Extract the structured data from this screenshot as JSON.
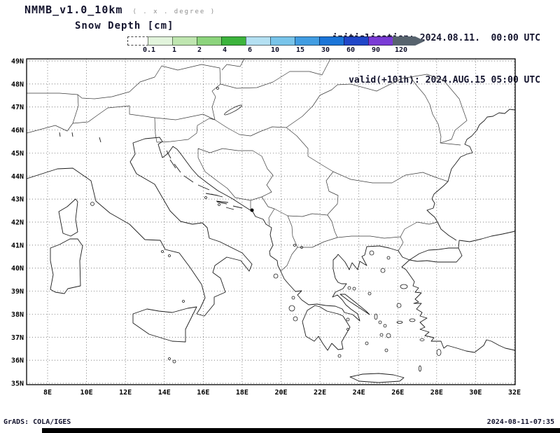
{
  "header": {
    "model": "NMMB_v1.0_10km",
    "resolution_note": "( . x . degree )",
    "field": "Snow Depth [cm]",
    "initialisation": "initialisation: 2024.08.11.  00:00 UTC",
    "valid": "valid(+101h): 2024.AUG.15 05:00 UTC"
  },
  "colorbar": {
    "tick_labels": [
      "0.1",
      "1",
      "2",
      "4",
      "6",
      "10",
      "15",
      "30",
      "60",
      "90",
      "120"
    ],
    "segments": [
      {
        "color": "#ffffff",
        "dashed": true
      },
      {
        "color": "#e2f4dc"
      },
      {
        "color": "#bfe6b0"
      },
      {
        "color": "#8cd47c"
      },
      {
        "color": "#3cb43c"
      },
      {
        "color": "#b4e0f2"
      },
      {
        "color": "#78c4ea"
      },
      {
        "color": "#419de2"
      },
      {
        "color": "#1b75d8"
      },
      {
        "color": "#2046c8"
      },
      {
        "color": "#7a3bd6"
      }
    ],
    "arrow_color": "#57636e"
  },
  "map": {
    "lat_ticks": [
      "49N",
      "48N",
      "47N",
      "46N",
      "45N",
      "44N",
      "43N",
      "42N",
      "41N",
      "40N",
      "39N",
      "38N",
      "37N",
      "36N",
      "35N"
    ],
    "lon_ticks": [
      "8E",
      "10E",
      "12E",
      "14E",
      "16E",
      "18E",
      "20E",
      "22E",
      "24E",
      "26E",
      "28E",
      "30E",
      "32E"
    ]
  },
  "footer": {
    "credit": "GrADS: COLA/IGES",
    "timestamp": "2024-08-11-07:35"
  }
}
